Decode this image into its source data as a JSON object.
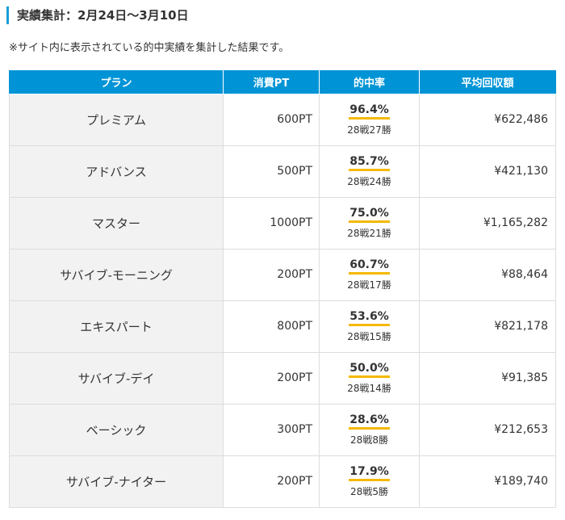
{
  "heading": "実績集計：2月24日〜3月10日",
  "note": "※サイト内に表示されている的中実績を集計した結果です。",
  "table": {
    "headers": [
      "プラン",
      "消費PT",
      "的中率",
      "平均回収額"
    ],
    "rows": [
      {
        "plan": "プレミアム",
        "cost": "600PT",
        "rate": "96.4%",
        "record": "28戦27勝",
        "avg": "¥622,486"
      },
      {
        "plan": "アドバンス",
        "cost": "500PT",
        "rate": "85.7%",
        "record": "28戦24勝",
        "avg": "¥421,130"
      },
      {
        "plan": "マスター",
        "cost": "1000PT",
        "rate": "75.0%",
        "record": "28戦21勝",
        "avg": "¥1,165,282"
      },
      {
        "plan": "サバイブ-モーニング",
        "cost": "200PT",
        "rate": "60.7%",
        "record": "28戦17勝",
        "avg": "¥88,464"
      },
      {
        "plan": "エキスパート",
        "cost": "800PT",
        "rate": "53.6%",
        "record": "28戦15勝",
        "avg": "¥821,178"
      },
      {
        "plan": "サバイブ-デイ",
        "cost": "200PT",
        "rate": "50.0%",
        "record": "28戦14勝",
        "avg": "¥91,385"
      },
      {
        "plan": "ベーシック",
        "cost": "300PT",
        "rate": "28.6%",
        "record": "28戦8勝",
        "avg": "¥212,653"
      },
      {
        "plan": "サバイブ-ナイター",
        "cost": "200PT",
        "rate": "17.9%",
        "record": "28戦5勝",
        "avg": "¥189,740"
      }
    ]
  },
  "colors": {
    "accent": "#0094d6",
    "heading_bar": "#1a9fd8",
    "underline": "#f5b800",
    "plan_cell_bg": "#f2f2f2"
  }
}
